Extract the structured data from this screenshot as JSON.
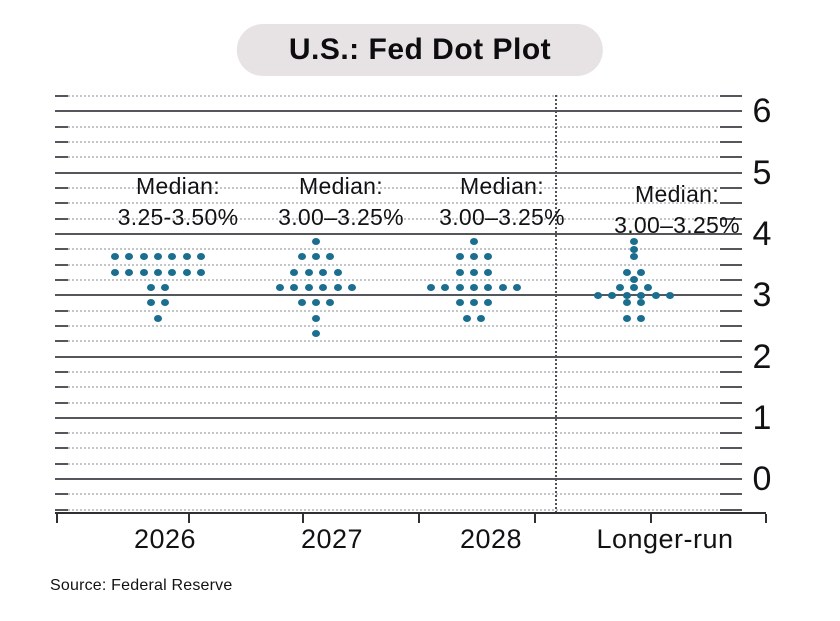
{
  "title": "U.S.: Fed Dot Plot",
  "source": "Source: Federal Reserve",
  "colors": {
    "dot": "#1c6e8f",
    "pill_bg": "#e7e2e4",
    "grid_solid": "#55575c",
    "grid_dotted": "#c3c5c8",
    "axis": "#2f3033",
    "text": "#121214"
  },
  "y_axis": {
    "tick_labels": [
      "6",
      "5",
      "4",
      "3",
      "2",
      "1",
      "0"
    ],
    "tick_values": [
      6,
      5,
      4,
      3,
      2,
      1,
      0
    ]
  },
  "chart_data": {
    "type": "scatter",
    "title": "U.S.: Fed Dot Plot",
    "ylim": [
      -0.5,
      6.25
    ],
    "yticks": [
      0,
      1,
      2,
      3,
      4,
      5,
      6
    ],
    "minor_grid_step": 0.25,
    "legend": "none",
    "categories": [
      "2026",
      "2027",
      "2028",
      "Longer-run"
    ],
    "columns": [
      {
        "label": "2026",
        "median_prefix": "Median:",
        "median_range": "3.25-3.50%",
        "dots": [
          {
            "rate": 3.625,
            "count": 7
          },
          {
            "rate": 3.375,
            "count": 7
          },
          {
            "rate": 3.125,
            "count": 2
          },
          {
            "rate": 2.875,
            "count": 2
          },
          {
            "rate": 2.625,
            "count": 1
          }
        ]
      },
      {
        "label": "2027",
        "median_prefix": "Median:",
        "median_range": "3.00–3.25%",
        "dots": [
          {
            "rate": 3.875,
            "count": 1
          },
          {
            "rate": 3.625,
            "count": 3
          },
          {
            "rate": 3.375,
            "count": 4
          },
          {
            "rate": 3.125,
            "count": 6
          },
          {
            "rate": 2.875,
            "count": 3
          },
          {
            "rate": 2.625,
            "count": 1
          },
          {
            "rate": 2.375,
            "count": 1
          }
        ]
      },
      {
        "label": "2028",
        "median_prefix": "Median:",
        "median_range": "3.00–3.25%",
        "dots": [
          {
            "rate": 3.875,
            "count": 1
          },
          {
            "rate": 3.625,
            "count": 3
          },
          {
            "rate": 3.375,
            "count": 3
          },
          {
            "rate": 3.125,
            "count": 7
          },
          {
            "rate": 2.875,
            "count": 3
          },
          {
            "rate": 2.625,
            "count": 2
          }
        ]
      },
      {
        "label": "Longer-run",
        "median_prefix": "Median:",
        "median_range": "3.00–3.25%",
        "dots": [
          {
            "rate": 3.875,
            "count": 1
          },
          {
            "rate": 3.75,
            "count": 1
          },
          {
            "rate": 3.625,
            "count": 1
          },
          {
            "rate": 3.375,
            "count": 2
          },
          {
            "rate": 3.25,
            "count": 1
          },
          {
            "rate": 3.125,
            "count": 3
          },
          {
            "rate": 3.0,
            "count": 6
          },
          {
            "rate": 2.875,
            "count": 2
          },
          {
            "rate": 2.625,
            "count": 2
          }
        ]
      }
    ]
  }
}
